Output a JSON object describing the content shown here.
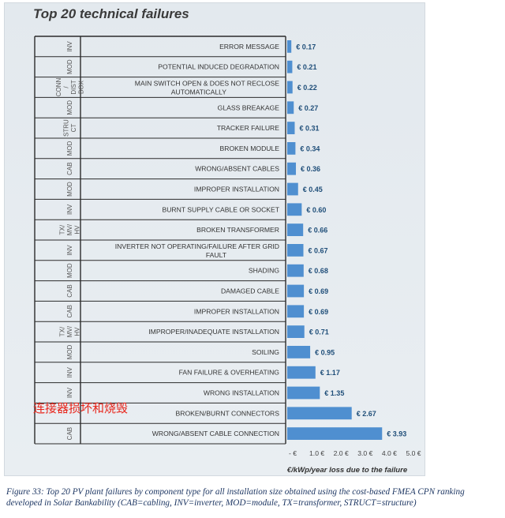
{
  "chart_data": {
    "type": "bar",
    "orientation": "horizontal",
    "title": "Top 20 technical failures",
    "xlabel": "€/kWp/year loss due to the failure",
    "xlim": [
      0,
      5
    ],
    "xticks": [
      0,
      1,
      2,
      3,
      4,
      5
    ],
    "xtick_labels": [
      "- €",
      "1.0 €",
      "2.0 €",
      "3.0 €",
      "4.0 €",
      "5.0 €"
    ],
    "categories": [
      "ERROR MESSAGE",
      "POTENTIAL INDUCED DEGRADATION",
      "MAIN SWITCH OPEN & DOES NOT RECLOSE AUTOMATICALLY",
      "GLASS BREAKAGE",
      "TRACKER FAILURE",
      "BROKEN MODULE",
      "WRONG/ABSENT CABLES",
      "IMPROPER INSTALLATION",
      "BURNT SUPPLY CABLE OR SOCKET",
      "BROKEN TRANSFORMER",
      "INVERTER NOT OPERATING/FAILURE AFTER GRID FAULT",
      "SHADING",
      "DAMAGED CABLE",
      "IMPROPER INSTALLATION",
      "IMPROPER/INADEQUATE  INSTALLATION",
      "SOILING",
      "FAN FAILURE & OVERHEATING",
      "WRONG INSTALLATION",
      "BROKEN/BURNT CONNECTORS",
      "WRONG/ABSENT CABLE CONNECTION"
    ],
    "values": [
      0.17,
      0.21,
      0.22,
      0.27,
      0.31,
      0.34,
      0.36,
      0.45,
      0.6,
      0.66,
      0.67,
      0.68,
      0.69,
      0.69,
      0.71,
      0.95,
      1.17,
      1.35,
      2.67,
      3.93
    ],
    "value_labels": [
      "€ 0.17",
      "€ 0.21",
      "€ 0.22",
      "€ 0.27",
      "€ 0.31",
      "€ 0.34",
      "€ 0.36",
      "€ 0.45",
      "€ 0.60",
      "€ 0.66",
      "€ 0.67",
      "€ 0.68",
      "€ 0.69",
      "€ 0.69",
      "€ 0.71",
      "€ 0.95",
      "€ 1.17",
      "€ 1.35",
      "€ 2.67",
      "€ 3.93"
    ],
    "component_types": [
      {
        "label": "INV",
        "span": [
          0,
          0
        ]
      },
      {
        "label": "MOD",
        "span": [
          1,
          1
        ]
      },
      {
        "label": "CONN / DIST BOX",
        "span": [
          2,
          2
        ]
      },
      {
        "label": "MOD",
        "span": [
          3,
          3
        ]
      },
      {
        "label": "STRU CT",
        "span": [
          4,
          4
        ]
      },
      {
        "label": "MOD",
        "span": [
          5,
          5
        ]
      },
      {
        "label": "CAB",
        "span": [
          6,
          6
        ]
      },
      {
        "label": "MOD",
        "span": [
          7,
          7
        ]
      },
      {
        "label": "INV",
        "span": [
          8,
          8
        ]
      },
      {
        "label": "TX/ MV/ HV",
        "span": [
          9,
          9
        ]
      },
      {
        "label": "INV",
        "span": [
          10,
          10
        ]
      },
      {
        "label": "MOD",
        "span": [
          11,
          11
        ]
      },
      {
        "label": "CAB",
        "span": [
          12,
          12
        ]
      },
      {
        "label": "CAB",
        "span": [
          13,
          13
        ]
      },
      {
        "label": "TX/ MV/ HV",
        "span": [
          14,
          14
        ]
      },
      {
        "label": "MOD",
        "span": [
          15,
          15
        ]
      },
      {
        "label": "INV",
        "span": [
          16,
          16
        ]
      },
      {
        "label": "INV",
        "span": [
          17,
          17
        ]
      },
      {
        "label": "",
        "span": [
          18,
          18
        ]
      },
      {
        "label": "CAB",
        "span": [
          19,
          19
        ]
      }
    ],
    "bar_color": "#4f8fd0",
    "label_color": "#1f4e79",
    "grid": false,
    "legend": "none"
  },
  "caption": "Figure 33: Top 20 PV plant failures by component type for all installation size obtained using the cost-based FMEA CPN ranking developed in Solar Bankability (CAB=cabling, INV=inverter, MOD=module, TX=transformer, STRUCT=structure)",
  "overlay_text": "连接器损坏和烧毁"
}
